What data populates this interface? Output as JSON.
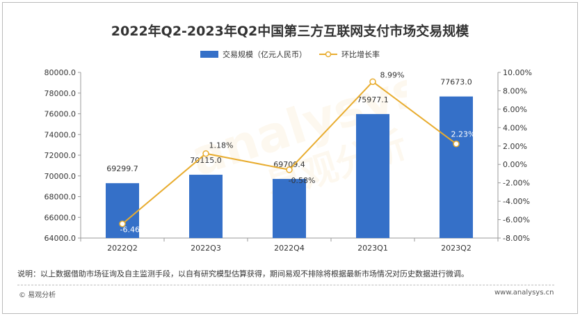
{
  "chart_data": {
    "type": "bar",
    "title": "2022年Q2-2023年Q2中国第三方互联网支付市场交易规模",
    "categories": [
      "2022Q2",
      "2022Q3",
      "2022Q4",
      "2023Q1",
      "2023Q2"
    ],
    "series": [
      {
        "name": "交易规模（亿元人民币）",
        "type": "bar",
        "axis": "left",
        "color": "#3570c8",
        "values": [
          69299.7,
          70115.0,
          69709.4,
          75977.1,
          77673.0
        ],
        "labels": [
          "69299.7",
          "70115.0",
          "69709.4",
          "75977.1",
          "77673.0"
        ]
      },
      {
        "name": "环比增长率",
        "type": "line",
        "axis": "right",
        "color": "#e8ac2e",
        "values": [
          -6.46,
          1.18,
          -0.58,
          8.99,
          2.23
        ],
        "labels": [
          "-6.46%",
          "1.18%",
          "-0.58%",
          "8.99%",
          "2.23%"
        ]
      }
    ],
    "y_left": {
      "range": [
        64000,
        80000
      ],
      "ticks": [
        "64000.0",
        "66000.0",
        "68000.0",
        "70000.0",
        "72000.0",
        "74000.0",
        "76000.0",
        "78000.0",
        "80000.0"
      ]
    },
    "y_right": {
      "range": [
        -8,
        10
      ],
      "ticks": [
        "-8.00%",
        "-6.00%",
        "-4.00%",
        "-2.00%",
        "0.00%",
        "2.00%",
        "4.00%",
        "6.00%",
        "8.00%",
        "10.00%"
      ]
    },
    "grid": false,
    "legend_position": "top-center"
  },
  "footer": {
    "note": "说明：以上数据借助市场征询及自主监测手段，以自有研究模型估算获得，期间易观不排除将根据最新市场情况对历史数据进行微调。",
    "copyright": "© 易观分析",
    "site": "www.analysys.cn"
  }
}
